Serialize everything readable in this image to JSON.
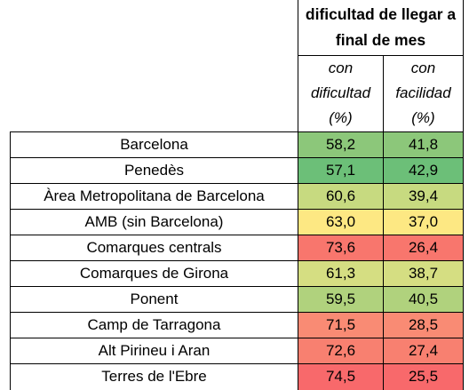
{
  "header": {
    "title_line1": "dificultad de llegar a",
    "title_line2": "final de mes",
    "col1": [
      "con",
      "dificultad",
      "(%)"
    ],
    "col2": [
      "con",
      "facilidad",
      "(%)"
    ]
  },
  "rows": [
    {
      "name": "Barcelona",
      "dificultad": "58,2",
      "facilidad": "41,8",
      "color1": "#8cc77a",
      "color2": "#8cc77a"
    },
    {
      "name": "Penedès",
      "dificultad": "57,1",
      "facilidad": "42,9",
      "color1": "#6cbf78",
      "color2": "#6cbf78"
    },
    {
      "name": "Àrea Metropolitana de Barcelona",
      "dificultad": "60,6",
      "facilidad": "39,4",
      "color1": "#c7da80",
      "color2": "#c7da80"
    },
    {
      "name": "AMB (sin Barcelona)",
      "dificultad": "63,0",
      "facilidad": "37,0",
      "color1": "#fde883",
      "color2": "#fde883"
    },
    {
      "name": "Comarques centrals",
      "dificultad": "73,6",
      "facilidad": "26,4",
      "color1": "#f8766d",
      "color2": "#f8766d"
    },
    {
      "name": "Comarques de Girona",
      "dificultad": "61,3",
      "facilidad": "38,7",
      "color1": "#d5de82",
      "color2": "#d5de82"
    },
    {
      "name": "Ponent",
      "dificultad": "59,5",
      "facilidad": "40,5",
      "color1": "#b0d27d",
      "color2": "#b0d27d"
    },
    {
      "name": "Camp de Tarragona",
      "dificultad": "71,5",
      "facilidad": "28,5",
      "color1": "#f98b74",
      "color2": "#f98b74"
    },
    {
      "name": "Alt Pirineu i Aran",
      "dificultad": "72,6",
      "facilidad": "27,4",
      "color1": "#f88070",
      "color2": "#f88070"
    },
    {
      "name": "Terres de l'Ebre",
      "dificultad": "74,5",
      "facilidad": "25,5",
      "color1": "#f8696b",
      "color2": "#f8696b"
    }
  ]
}
